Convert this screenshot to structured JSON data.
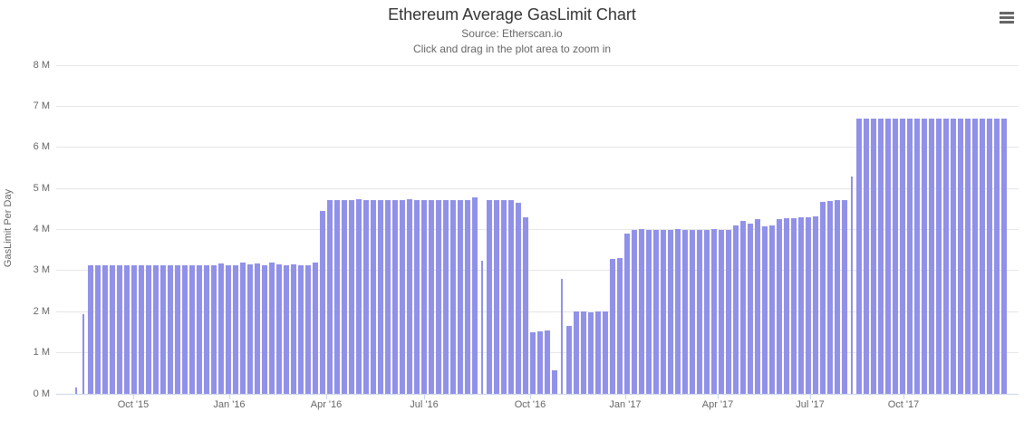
{
  "header": {
    "title": "Ethereum Average GasLimit Chart",
    "subtitle_source": "Source: Etherscan.io",
    "subtitle_hint": "Click and drag in the plot area to zoom in"
  },
  "menu": {
    "icon": "hamburger-menu-icon"
  },
  "chart_data": {
    "type": "bar",
    "title": "Ethereum Average GasLimit Chart",
    "subtitle": [
      "Source: Etherscan.io",
      "Click and drag in the plot area to zoom in"
    ],
    "ylabel": "GasLimit Per Day",
    "xlabel": "",
    "ylim_million": [
      0,
      8
    ],
    "grid": "horizontal-only",
    "legend": "none",
    "bar_color": "#9191e9",
    "gridline_color": "#e6e6e6",
    "axis_color": "#ccd6eb",
    "ytick_labels": [
      "0 M",
      "1 M",
      "2 M",
      "3 M",
      "4 M",
      "5 M",
      "6 M",
      "7 M",
      "8 M"
    ],
    "xtick_labels": [
      "Oct '15",
      "Jan '16",
      "Apr '16",
      "Jul '16",
      "Oct '16",
      "Jan '17",
      "Apr '17",
      "Jul '17",
      "Oct '17"
    ],
    "x_start": "Aug 2015",
    "x_end": "Dec 2017",
    "interval": "weekly",
    "values_unit": "million gas per day (average)",
    "values": [
      0.15,
      1.94,
      3.14,
      3.14,
      3.14,
      3.14,
      3.14,
      3.14,
      3.14,
      3.14,
      3.14,
      3.14,
      3.14,
      3.14,
      3.14,
      3.14,
      3.14,
      3.14,
      3.14,
      3.14,
      3.18,
      3.14,
      3.14,
      3.2,
      3.15,
      3.17,
      3.14,
      3.2,
      3.15,
      3.14,
      3.16,
      3.14,
      3.14,
      3.2,
      4.45,
      4.72,
      4.72,
      4.71,
      4.72,
      4.73,
      4.72,
      4.72,
      4.72,
      4.71,
      4.72,
      4.72,
      4.73,
      4.72,
      4.72,
      4.72,
      4.72,
      4.71,
      4.72,
      4.72,
      4.72,
      4.78,
      3.25,
      4.72,
      4.72,
      4.72,
      4.72,
      4.65,
      4.3,
      1.5,
      1.52,
      1.55,
      0.58,
      2.8,
      1.65,
      2.0,
      2.0,
      1.98,
      2.0,
      2.0,
      3.28,
      3.3,
      3.9,
      4.0,
      4.02,
      4.0,
      4.0,
      4.0,
      4.0,
      4.02,
      4.0,
      4.0,
      4.0,
      4.0,
      4.02,
      4.0,
      4.0,
      4.1,
      4.2,
      4.15,
      4.25,
      4.08,
      4.1,
      4.25,
      4.27,
      4.28,
      4.3,
      4.3,
      4.32,
      4.68,
      4.7,
      4.72,
      4.72,
      5.3,
      6.7,
      6.7,
      6.7,
      6.7,
      6.7,
      6.7,
      6.7,
      6.7,
      6.7,
      6.7,
      6.7,
      6.7,
      6.7,
      6.7,
      6.7,
      6.7,
      6.7,
      6.7,
      6.7,
      6.7,
      6.7
    ],
    "thin_indices": [
      0,
      1,
      56,
      67,
      107
    ]
  }
}
